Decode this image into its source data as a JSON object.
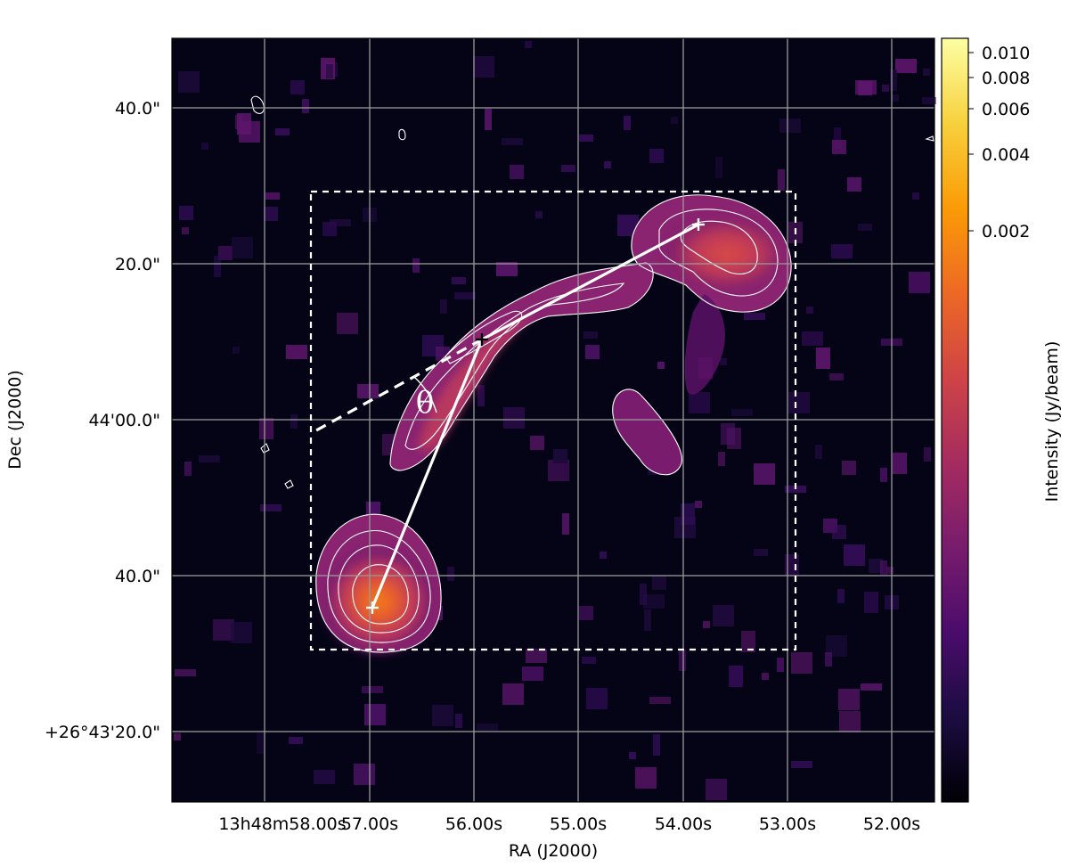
{
  "chart_data": {
    "type": "heatmap",
    "title": "",
    "xlabel": "RA (J2000)",
    "ylabel": "Dec (J2000)",
    "x_tick_labels": [
      "13h48m58.00s",
      "57.00s",
      "56.00s",
      "55.00s",
      "54.00s",
      "53.00s",
      "52.00s"
    ],
    "y_tick_labels": [
      "+26°43'20.0\"",
      "40.0\"",
      "44'00.0\"",
      "20.0\"",
      "40.0\""
    ],
    "colorbar": {
      "label": "Intensity (Jy/beam)",
      "tick_labels": [
        "0.010",
        "0.008",
        "0.006",
        "0.004",
        "0.002"
      ],
      "colormap": "inferno",
      "colors": [
        "#000004",
        "#1b0c41",
        "#4a0c6b",
        "#781c6d",
        "#a52c60",
        "#cf4446",
        "#ed6925",
        "#fb9b06",
        "#f7d13d",
        "#fcffa4"
      ]
    },
    "grid": true,
    "grid_color": "#9a9a9a",
    "features": {
      "box_style": "dashed white",
      "markers": "plus signs at the two lobes and the bend",
      "angle_label": "θ"
    }
  }
}
